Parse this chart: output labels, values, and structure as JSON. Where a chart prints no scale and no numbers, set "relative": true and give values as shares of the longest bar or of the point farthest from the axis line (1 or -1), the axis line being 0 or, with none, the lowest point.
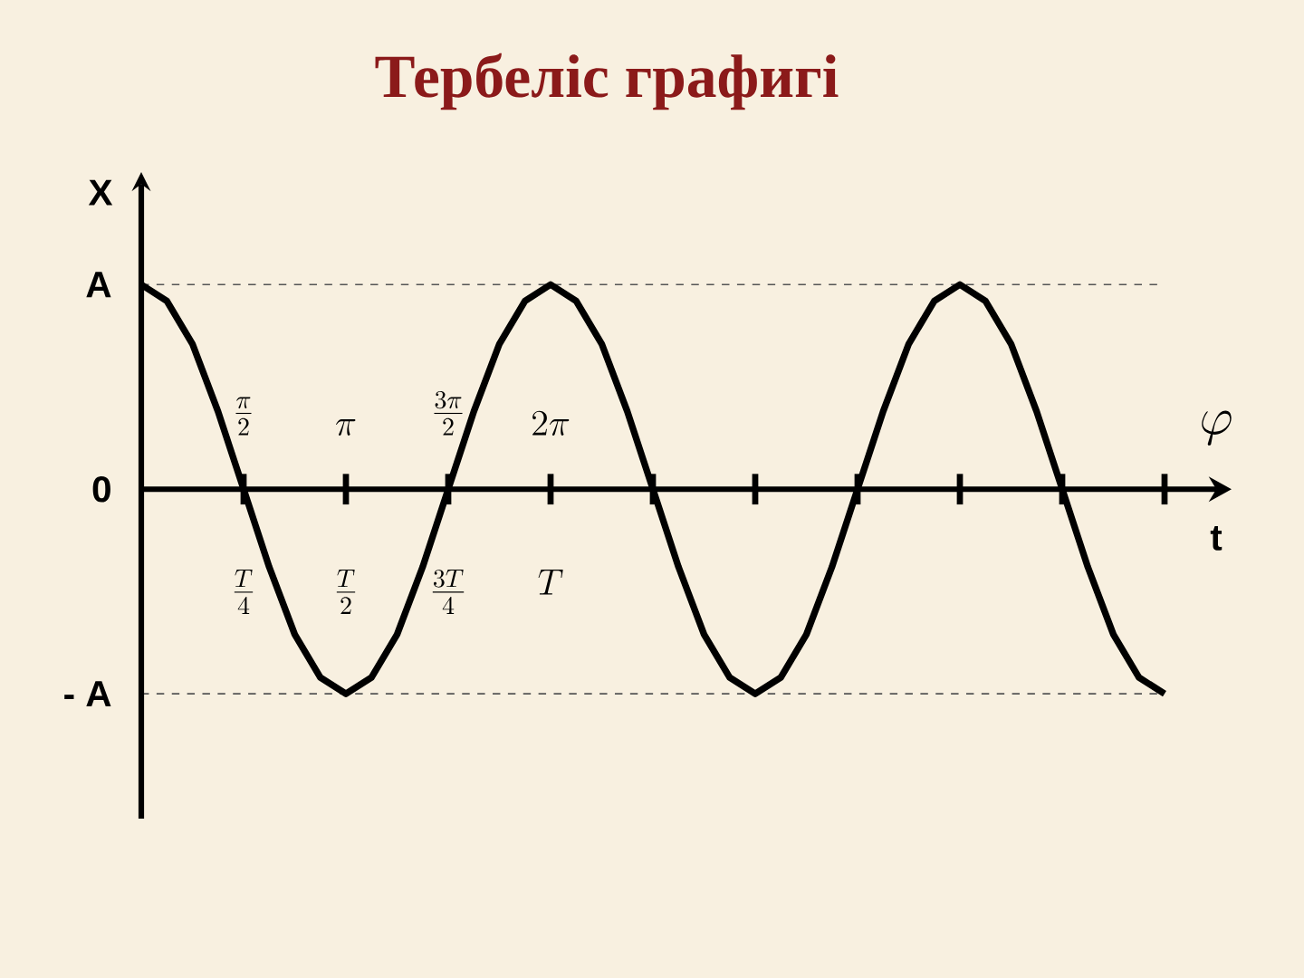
{
  "chart_data": {
    "type": "line",
    "title": "Тербеліс графигі",
    "xlabel": "t",
    "ylabel": "X",
    "relative": true,
    "categories": [
      null,
      null,
      null,
      null,
      "\\frac{T}{4}",
      null,
      null,
      null,
      "\\frac{T}{2}",
      null,
      null,
      null,
      "\\frac{3T}{4}",
      null,
      null,
      null,
      "T",
      null,
      null,
      null,
      null,
      null,
      null,
      null,
      null,
      null,
      null,
      null,
      null,
      null,
      null,
      null,
      null,
      null,
      null,
      null,
      null,
      null,
      null,
      null,
      null
    ],
    "series": [
      {
        "color": "#000000",
        "values": [
          1,
          0.92,
          0.71,
          0.38,
          0,
          -0.38,
          -0.71,
          -0.92,
          -1,
          -0.92,
          -0.71,
          -0.38,
          0,
          0.38,
          0.71,
          0.92,
          1,
          0.92,
          0.71,
          0.38,
          0,
          -0.38,
          -0.71,
          -0.92,
          -1,
          -0.92,
          -0.71,
          -0.38,
          0,
          0.38,
          0.71,
          0.92,
          1,
          0.92,
          0.71,
          0.38,
          0,
          -0.38,
          -0.71,
          -0.92,
          -1
        ]
      }
    ],
    "ref_lines": [
      {
        "axis": "y",
        "value": 1,
        "label": "A",
        "color": "#555555",
        "line_style": "dashed"
      },
      {
        "axis": "y",
        "value": -1,
        "label": "- A",
        "color": "#555555",
        "line_style": "dashed"
      }
    ],
    "annotations": [
      "\\frac{\\pi}{2}",
      "\\pi",
      "\\frac{3\\pi}{2}",
      "2\\pi",
      "\\varphi",
      "0"
    ],
    "marker": "none",
    "line_style": "solid",
    "legend": false,
    "grid": false
  }
}
